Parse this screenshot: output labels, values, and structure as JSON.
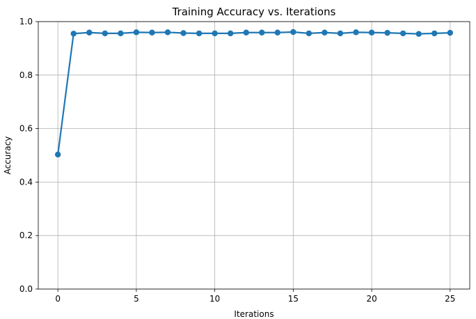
{
  "chart_data": {
    "type": "line",
    "title": "Training Accuracy vs. Iterations",
    "xlabel": "Iterations",
    "ylabel": "Accuracy",
    "xlim": [
      -1.25,
      26.25
    ],
    "ylim": [
      0.0,
      1.0
    ],
    "xticks": [
      0,
      5,
      10,
      15,
      20,
      25
    ],
    "yticks": [
      0.0,
      0.2,
      0.4,
      0.6,
      0.8,
      1.0
    ],
    "xtick_labels": [
      "0",
      "5",
      "10",
      "15",
      "20",
      "25"
    ],
    "ytick_labels": [
      "0.0",
      "0.2",
      "0.4",
      "0.6",
      "0.8",
      "1.0"
    ],
    "grid": true,
    "marker": "circle",
    "series": [
      {
        "color": "#1f77b4",
        "x": [
          0,
          1,
          2,
          3,
          4,
          5,
          6,
          7,
          8,
          9,
          10,
          11,
          12,
          13,
          14,
          15,
          16,
          17,
          18,
          19,
          20,
          21,
          22,
          23,
          24,
          25
        ],
        "y": [
          0.503,
          0.955,
          0.959,
          0.956,
          0.956,
          0.96,
          0.959,
          0.96,
          0.957,
          0.956,
          0.956,
          0.956,
          0.959,
          0.959,
          0.959,
          0.961,
          0.956,
          0.959,
          0.956,
          0.96,
          0.959,
          0.958,
          0.956,
          0.954,
          0.956,
          0.958
        ]
      }
    ]
  }
}
